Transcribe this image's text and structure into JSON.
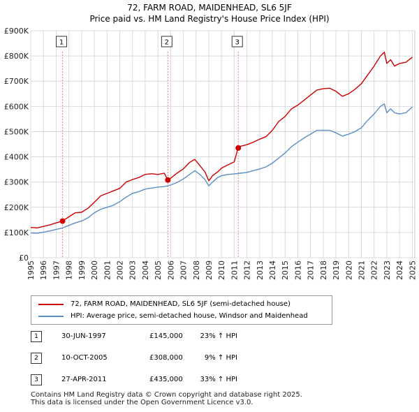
{
  "title_line1": "72, FARM ROAD, MAIDENHEAD, SL6 5JF",
  "title_line2": "Price paid vs. HM Land Registry's House Price Index (HPI)",
  "colors": {
    "property": "#cc0000",
    "hpi": "#5b8ec4",
    "grid": "#d9d9d9",
    "marker_line": "#e08080"
  },
  "chart_data": {
    "type": "line",
    "title": "Price paid vs. HM Land Registry's House Price Index (HPI)",
    "xlim": [
      1995,
      2025.2
    ],
    "ylim": [
      0,
      900000
    ],
    "y_ticks": [
      0,
      100000,
      200000,
      300000,
      400000,
      500000,
      600000,
      700000,
      800000,
      900000
    ],
    "y_tick_labels": [
      "£0",
      "£100K",
      "£200K",
      "£300K",
      "£400K",
      "£500K",
      "£600K",
      "£700K",
      "£800K",
      "£900K"
    ],
    "x_ticks": [
      1995,
      1996,
      1997,
      1998,
      1999,
      2000,
      2001,
      2002,
      2003,
      2004,
      2005,
      2006,
      2007,
      2008,
      2009,
      2010,
      2011,
      2012,
      2013,
      2014,
      2015,
      2016,
      2017,
      2018,
      2019,
      2020,
      2021,
      2022,
      2023,
      2024,
      2025
    ],
    "x_tick_labels": [
      "1995",
      "1996",
      "1997",
      "1998",
      "1999",
      "2000",
      "2001",
      "2002",
      "2003",
      "2004",
      "2005",
      "2006",
      "2007",
      "2008",
      "2009",
      "2010",
      "2011",
      "2012",
      "2013",
      "2014",
      "2015",
      "2016",
      "2017",
      "2018",
      "2019",
      "2020",
      "2021",
      "2022",
      "2023",
      "2024",
      "2025"
    ],
    "series": [
      {
        "name": "72, FARM ROAD, MAIDENHEAD, SL6 5JF (semi-detached house)",
        "color": "#cc0000",
        "x": [
          1995.0,
          1995.5,
          1996.0,
          1996.5,
          1997.0,
          1997.5,
          1998.0,
          1998.5,
          1999.0,
          1999.5,
          2000.0,
          2000.5,
          2001.0,
          2001.5,
          2002.0,
          2002.5,
          2003.0,
          2003.5,
          2004.0,
          2004.5,
          2005.0,
          2005.5,
          2005.78,
          2006.0,
          2006.5,
          2007.0,
          2007.5,
          2007.9,
          2008.3,
          2008.7,
          2009.0,
          2009.3,
          2009.7,
          2010.0,
          2010.5,
          2011.0,
          2011.3,
          2011.5,
          2012.0,
          2012.5,
          2013.0,
          2013.5,
          2014.0,
          2014.5,
          2015.0,
          2015.5,
          2016.0,
          2016.5,
          2017.0,
          2017.5,
          2018.0,
          2018.5,
          2019.0,
          2019.5,
          2020.0,
          2020.5,
          2021.0,
          2021.5,
          2022.0,
          2022.5,
          2022.8,
          2023.0,
          2023.3,
          2023.6,
          2024.0,
          2024.5,
          2025.0
        ],
        "values": [
          120000,
          118000,
          124000,
          130000,
          138000,
          145000,
          162000,
          178000,
          180000,
          196000,
          220000,
          245000,
          255000,
          265000,
          275000,
          300000,
          310000,
          318000,
          330000,
          333000,
          330000,
          335000,
          308000,
          315000,
          335000,
          352000,
          378000,
          390000,
          365000,
          340000,
          305000,
          325000,
          340000,
          355000,
          368000,
          380000,
          435000,
          442000,
          448000,
          458000,
          470000,
          480000,
          505000,
          540000,
          560000,
          590000,
          605000,
          625000,
          645000,
          665000,
          670000,
          672000,
          660000,
          640000,
          650000,
          668000,
          690000,
          725000,
          760000,
          800000,
          815000,
          770000,
          785000,
          760000,
          770000,
          775000,
          795000
        ]
      },
      {
        "name": "HPI: Average price, semi-detached house, Windsor and Maidenhead",
        "color": "#5b8ec4",
        "x": [
          1995.0,
          1995.5,
          1996.0,
          1996.5,
          1997.0,
          1997.5,
          1998.0,
          1998.5,
          1999.0,
          1999.5,
          2000.0,
          2000.5,
          2001.0,
          2001.5,
          2002.0,
          2002.5,
          2003.0,
          2003.5,
          2004.0,
          2004.5,
          2005.0,
          2005.5,
          2006.0,
          2006.5,
          2007.0,
          2007.5,
          2007.9,
          2008.3,
          2008.7,
          2009.0,
          2009.3,
          2009.7,
          2010.0,
          2010.5,
          2011.0,
          2011.5,
          2012.0,
          2012.5,
          2013.0,
          2013.5,
          2014.0,
          2014.5,
          2015.0,
          2015.5,
          2016.0,
          2016.5,
          2017.0,
          2017.5,
          2018.0,
          2018.5,
          2019.0,
          2019.5,
          2020.0,
          2020.5,
          2021.0,
          2021.5,
          2022.0,
          2022.5,
          2022.8,
          2023.0,
          2023.3,
          2023.6,
          2024.0,
          2024.5,
          2025.0
        ],
        "values": [
          98000,
          97000,
          101000,
          106000,
          112000,
          118000,
          128000,
          138000,
          145000,
          158000,
          178000,
          192000,
          200000,
          208000,
          222000,
          240000,
          255000,
          262000,
          272000,
          276000,
          280000,
          282000,
          288000,
          298000,
          312000,
          330000,
          345000,
          330000,
          310000,
          285000,
          300000,
          318000,
          325000,
          330000,
          332000,
          335000,
          338000,
          345000,
          352000,
          360000,
          375000,
          395000,
          415000,
          440000,
          458000,
          475000,
          490000,
          505000,
          505000,
          505000,
          495000,
          482000,
          490000,
          500000,
          515000,
          545000,
          570000,
          600000,
          610000,
          575000,
          590000,
          575000,
          570000,
          575000,
          598000
        ]
      }
    ],
    "sales": [
      {
        "label": "1",
        "x": 1997.5,
        "price": 145000
      },
      {
        "label": "2",
        "x": 2005.78,
        "price": 308000
      },
      {
        "label": "3",
        "x": 2011.32,
        "price": 435000
      }
    ]
  },
  "legend": {
    "property": "72, FARM ROAD, MAIDENHEAD, SL6 5JF (semi-detached house)",
    "hpi": "HPI: Average price, semi-detached house, Windsor and Maidenhead"
  },
  "sales_table": [
    {
      "num": "1",
      "date": "30-JUN-1997",
      "price": "£145,000",
      "hpi": "23% ↑ HPI"
    },
    {
      "num": "2",
      "date": "10-OCT-2005",
      "price": "£308,000",
      "hpi": "9% ↑ HPI"
    },
    {
      "num": "3",
      "date": "27-APR-2011",
      "price": "£435,000",
      "hpi": "33% ↑ HPI"
    }
  ],
  "footer": {
    "line1": "Contains HM Land Registry data © Crown copyright and database right 2025.",
    "line2": "This data is licensed under the Open Government Licence v3.0."
  }
}
